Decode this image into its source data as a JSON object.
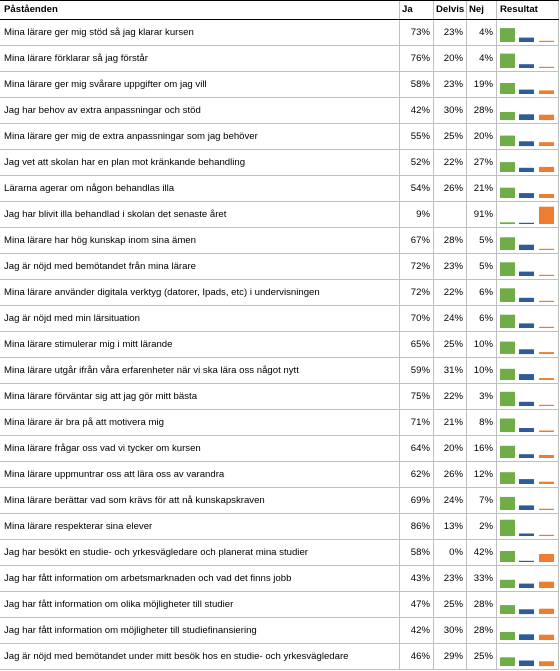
{
  "header": {
    "statement": "Påståenden",
    "ja": "Ja",
    "delvis": "Delvis",
    "nej": "Nej",
    "result": "Resultat"
  },
  "colors": {
    "ja": "#70ad47",
    "delvis": "#2e5c9a",
    "nej": "#ed7d31"
  },
  "chart_data": {
    "type": "table",
    "columns": [
      "Påståenden",
      "Ja",
      "Delvis",
      "Nej",
      "Resultat"
    ],
    "rows": [
      {
        "label": "Mina lärare ger mig stöd så jag klarar kursen",
        "ja": "73%",
        "delvis": "23%",
        "nej": "4%",
        "values": [
          73,
          23,
          4
        ]
      },
      {
        "label": "Mina lärare förklarar så jag förstår",
        "ja": "76%",
        "delvis": "20%",
        "nej": "4%",
        "values": [
          76,
          20,
          4
        ]
      },
      {
        "label": "Mina lärare ger mig svårare uppgifter om jag vill",
        "ja": "58%",
        "delvis": "23%",
        "nej": "19%",
        "values": [
          58,
          23,
          19
        ]
      },
      {
        "label": "Jag har behov av extra anpassningar och stöd",
        "ja": "42%",
        "delvis": "30%",
        "nej": "28%",
        "values": [
          42,
          30,
          28
        ]
      },
      {
        "label": "Mina lärare ger mig de extra anpassningar som jag behöver",
        "ja": "55%",
        "delvis": "25%",
        "nej": "20%",
        "values": [
          55,
          25,
          20
        ]
      },
      {
        "label": "Jag vet att skolan har en plan mot kränkande behandling",
        "ja": "52%",
        "delvis": "22%",
        "nej": "27%",
        "values": [
          52,
          22,
          27
        ]
      },
      {
        "label": "Lärarna agerar om någon behandlas illa",
        "ja": "54%",
        "delvis": "26%",
        "nej": "21%",
        "values": [
          54,
          26,
          21
        ]
      },
      {
        "label": "Jag har blivit illa behandlad i skolan det senaste året",
        "ja": "9%",
        "delvis": "",
        "nej": "91%",
        "values": [
          9,
          0,
          91
        ]
      },
      {
        "label": "Mina lärare har hög kunskap inom sina ämen",
        "ja": "67%",
        "delvis": "28%",
        "nej": "5%",
        "values": [
          67,
          28,
          5
        ]
      },
      {
        "label": "Jag är nöjd med bemötandet från mina lärare",
        "ja": "72%",
        "delvis": "23%",
        "nej": "5%",
        "values": [
          72,
          23,
          5
        ]
      },
      {
        "label": "Mina lärare använder digitala verktyg (datorer, Ipads, etc) i undervisningen",
        "ja": "72%",
        "delvis": "22%",
        "nej": "6%",
        "values": [
          72,
          22,
          6
        ]
      },
      {
        "label": "Jag är nöjd med min lärsituation",
        "ja": "70%",
        "delvis": "24%",
        "nej": "6%",
        "values": [
          70,
          24,
          6
        ]
      },
      {
        "label": "Mina lärare stimulerar mig i mitt lärande",
        "ja": "65%",
        "delvis": "25%",
        "nej": "10%",
        "values": [
          65,
          25,
          10
        ]
      },
      {
        "label": "Mina lärare utgår ifrån våra erfarenheter när vi ska lära oss något nytt",
        "ja": "59%",
        "delvis": "31%",
        "nej": "10%",
        "values": [
          59,
          31,
          10
        ]
      },
      {
        "label": "Mina lärare förväntar sig att jag gör mitt bästa",
        "ja": "75%",
        "delvis": "22%",
        "nej": "3%",
        "values": [
          75,
          22,
          3
        ]
      },
      {
        "label": "Mina lärare är bra på att motivera mig",
        "ja": "71%",
        "delvis": "21%",
        "nej": "8%",
        "values": [
          71,
          21,
          8
        ]
      },
      {
        "label": "Mina lärare frågar oss vad vi tycker om kursen",
        "ja": "64%",
        "delvis": "20%",
        "nej": "16%",
        "values": [
          64,
          20,
          16
        ]
      },
      {
        "label": "Mina lärare uppmuntrar oss att lära oss av varandra",
        "ja": "62%",
        "delvis": "26%",
        "nej": "12%",
        "values": [
          62,
          26,
          12
        ]
      },
      {
        "label": "Mina lärare berättar vad som krävs för att nå kunskapskraven",
        "ja": "69%",
        "delvis": "24%",
        "nej": "7%",
        "values": [
          69,
          24,
          7
        ]
      },
      {
        "label": "Mina lärare respekterar sina elever",
        "ja": "86%",
        "delvis": "13%",
        "nej": "2%",
        "values": [
          86,
          13,
          2
        ]
      },
      {
        "label": "Jag har besökt en studie- och yrkesvägledare och planerat mina studier",
        "ja": "58%",
        "delvis": "0%",
        "nej": "42%",
        "values": [
          58,
          0,
          42
        ]
      },
      {
        "label": "Jag har fått information om arbetsmarknaden och vad det finns jobb",
        "ja": "43%",
        "delvis": "23%",
        "nej": "33%",
        "values": [
          43,
          23,
          33
        ]
      },
      {
        "label": "Jag har fått information om olika möjligheter till studier",
        "ja": "47%",
        "delvis": "25%",
        "nej": "28%",
        "values": [
          47,
          25,
          28
        ]
      },
      {
        "label": "Jag har fått information om möjligheter till studiefinansiering",
        "ja": "42%",
        "delvis": "30%",
        "nej": "28%",
        "values": [
          42,
          30,
          28
        ]
      },
      {
        "label": "Jag är nöjd med bemötandet under mitt besök hos en studie- och yrkesvägledare",
        "ja": "46%",
        "delvis": "29%",
        "nej": "25%",
        "values": [
          46,
          29,
          25
        ]
      }
    ]
  }
}
